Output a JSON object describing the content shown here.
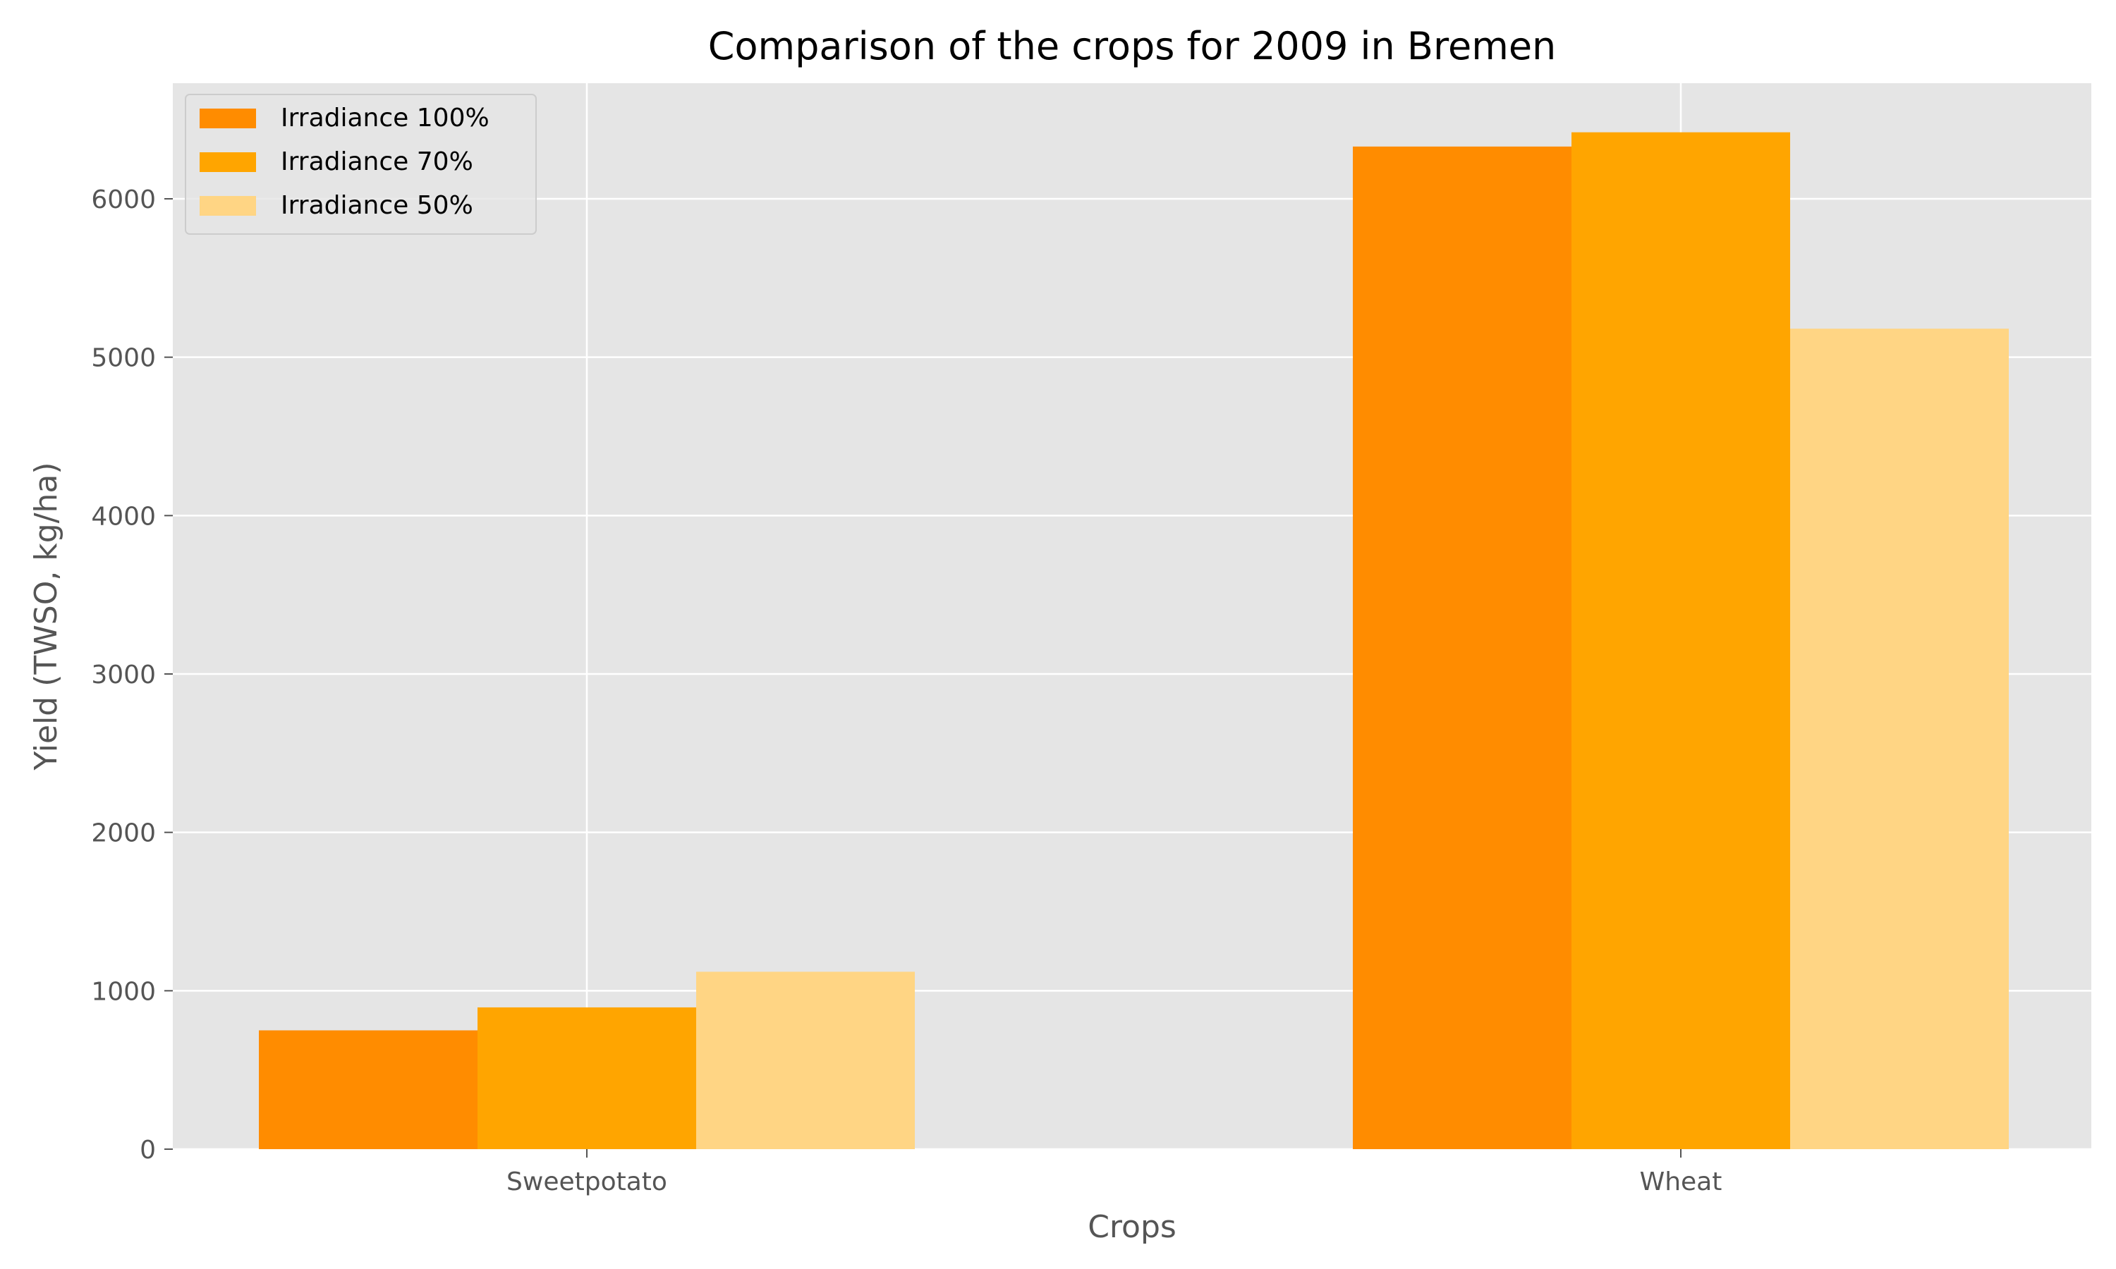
{
  "chart_data": {
    "type": "bar",
    "title": "Comparison of the crops for 2009 in Bremen",
    "xlabel": "Crops",
    "ylabel": "Yield (TWSO, kg/ha)",
    "categories": [
      "Sweetpotato",
      "Wheat"
    ],
    "series": [
      {
        "name": "Irradiance 100%",
        "color": "#FF8C00",
        "values": [
          750,
          6330
        ]
      },
      {
        "name": "Irradiance 70%",
        "color": "#FFA500",
        "values": [
          895,
          6420
        ]
      },
      {
        "name": "Irradiance 50%",
        "color": "#FFD584",
        "values": [
          1120,
          5180
        ]
      }
    ],
    "ylim": [
      0,
      6730
    ],
    "yticks": [
      0,
      1000,
      2000,
      3000,
      4000,
      5000,
      6000
    ],
    "grid": true,
    "legend_position": "top-left",
    "style": {
      "plot_background": "#E5E5E5",
      "grid_color": "#FFFFFF",
      "text_color": "#555555",
      "title_color": "#000000"
    }
  }
}
